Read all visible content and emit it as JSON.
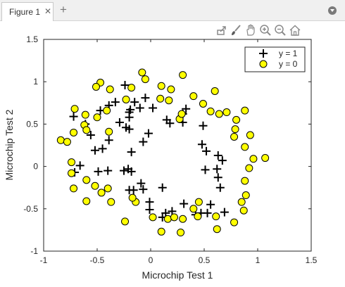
{
  "window": {
    "tab_label": "Figure 1",
    "tab_close": "✕",
    "add_tab": "+"
  },
  "toolbar": {
    "icons": [
      "export-icon",
      "brush-icon",
      "pan-icon",
      "zoom-in-icon",
      "zoom-out-icon",
      "home-icon"
    ]
  },
  "chart_data": {
    "type": "scatter",
    "title": "",
    "xlabel": "Microchip Test 1",
    "ylabel": "Microchip Test 2",
    "xlim": [
      -1,
      1.5
    ],
    "ylim": [
      -1,
      1.5
    ],
    "xticks": [
      "-1",
      "-0.5",
      "0",
      "0.5",
      "1",
      "1.5"
    ],
    "yticks": [
      "-1",
      "-0.5",
      "0",
      "0.5",
      "1",
      "1.5"
    ],
    "legend_position": "top-right",
    "grid": false,
    "series": [
      {
        "name": "y = 1",
        "marker": "plus",
        "color": "#000000",
        "points": [
          [
            -0.24,
            0.96
          ],
          [
            -0.05,
            0.81
          ],
          [
            0.02,
            0.69
          ],
          [
            -0.19,
            0.67
          ],
          [
            0.15,
            0.55
          ],
          [
            0.18,
            0.51
          ],
          [
            0.3,
            0.62
          ],
          [
            0.33,
            0.68
          ],
          [
            0.49,
            0.48
          ],
          [
            0.48,
            0.26
          ],
          [
            0.52,
            0.18
          ],
          [
            0.63,
            0.13
          ],
          [
            0.67,
            0.07
          ],
          [
            0.62,
            -0.03
          ],
          [
            0.63,
            -0.13
          ],
          [
            0.65,
            -0.25
          ],
          [
            0.69,
            -0.54
          ],
          [
            0.53,
            -0.55
          ],
          [
            0.42,
            -0.57
          ],
          [
            0.31,
            -0.44
          ],
          [
            0.14,
            -0.55
          ],
          [
            -0.01,
            -0.42
          ],
          [
            -0.07,
            -0.27
          ],
          [
            -0.16,
            -0.28
          ],
          [
            -0.2,
            -0.28
          ],
          [
            -0.09,
            -0.2
          ],
          [
            -0.18,
            -0.06
          ],
          [
            -0.25,
            -0.05
          ],
          [
            -0.4,
            -0.05
          ],
          [
            -0.49,
            -0.06
          ],
          [
            -0.52,
            0.19
          ],
          [
            -0.45,
            0.21
          ],
          [
            -0.39,
            0.31
          ],
          [
            -0.56,
            0.37
          ],
          [
            -0.66,
            0.01
          ],
          [
            -0.71,
            -0.07
          ],
          [
            -0.61,
            0.5
          ],
          [
            -0.72,
            0.59
          ],
          [
            -0.47,
            0.66
          ],
          [
            -0.39,
            0.72
          ],
          [
            -0.2,
            0.64
          ],
          [
            -0.15,
            0.76
          ],
          [
            -0.1,
            0.69
          ],
          [
            -0.2,
            0.58
          ],
          [
            -0.29,
            0.52
          ],
          [
            -0.33,
            0.76
          ],
          [
            -0.23,
            0.46
          ],
          [
            -0.18,
            0.17
          ],
          [
            -0.2,
            0.44
          ],
          [
            -0.02,
            0.39
          ],
          [
            -0.07,
            0.29
          ],
          [
            0.3,
            0.52
          ],
          [
            0.51,
            -0.04
          ],
          [
            0.56,
            -0.45
          ],
          [
            0.47,
            -0.55
          ],
          [
            -0.01,
            -0.51
          ],
          [
            -0.21,
            -0.03
          ],
          [
            0.2,
            -0.53
          ],
          [
            0.11,
            -0.25
          ],
          [
            0.11,
            -0.6
          ]
        ]
      },
      {
        "name": "y = 0",
        "marker": "circle",
        "color": "#ffff00",
        "points": [
          [
            -0.08,
            1.11
          ],
          [
            -0.47,
            0.99
          ],
          [
            -0.51,
            0.94
          ],
          [
            -0.38,
            0.91
          ],
          [
            -0.18,
            0.93
          ],
          [
            -0.05,
            1.03
          ],
          [
            0.1,
            0.95
          ],
          [
            0.19,
            0.91
          ],
          [
            0.3,
            1.08
          ],
          [
            0.4,
            0.83
          ],
          [
            0.49,
            0.74
          ],
          [
            0.6,
            0.89
          ],
          [
            0.56,
            0.65
          ],
          [
            0.64,
            0.62
          ],
          [
            0.71,
            0.64
          ],
          [
            0.88,
            0.66
          ],
          [
            0.8,
            0.55
          ],
          [
            0.79,
            0.44
          ],
          [
            0.93,
            0.37
          ],
          [
            0.88,
            0.23
          ],
          [
            0.96,
            0.09
          ],
          [
            1.07,
            0.1
          ],
          [
            0.92,
            -0.02
          ],
          [
            0.88,
            -0.17
          ],
          [
            0.85,
            -0.42
          ],
          [
            0.87,
            -0.52
          ],
          [
            0.78,
            -0.66
          ],
          [
            0.61,
            -0.59
          ],
          [
            0.44,
            -0.59
          ],
          [
            0.3,
            -0.62
          ],
          [
            0.16,
            -0.62
          ],
          [
            0.1,
            -0.77
          ],
          [
            0.28,
            -0.78
          ],
          [
            0.62,
            -0.74
          ],
          [
            0.45,
            -0.42
          ],
          [
            0.4,
            -0.5
          ],
          [
            0.22,
            -0.6
          ],
          [
            0.02,
            -0.6
          ],
          [
            -0.14,
            -0.42
          ],
          [
            -0.17,
            -0.37
          ],
          [
            -0.24,
            -0.65
          ],
          [
            -0.37,
            -0.42
          ],
          [
            -0.4,
            -0.26
          ],
          [
            -0.46,
            -0.31
          ],
          [
            -0.52,
            -0.23
          ],
          [
            -0.6,
            -0.16
          ],
          [
            -0.6,
            -0.41
          ],
          [
            -0.72,
            -0.26
          ],
          [
            -0.74,
            -0.08
          ],
          [
            -0.74,
            0.05
          ],
          [
            -0.84,
            0.31
          ],
          [
            -0.78,
            0.29
          ],
          [
            -0.72,
            0.4
          ],
          [
            -0.62,
            0.49
          ],
          [
            -0.61,
            0.61
          ],
          [
            -0.71,
            0.68
          ],
          [
            -0.41,
            0.66
          ],
          [
            -0.5,
            0.58
          ],
          [
            -0.39,
            0.41
          ],
          [
            0.27,
            0.56
          ],
          [
            0.29,
            0.62
          ],
          [
            0.78,
            0.35
          ],
          [
            0.89,
            -0.34
          ],
          [
            0.17,
            0.78
          ],
          [
            0.09,
            0.8
          ],
          [
            -0.23,
            0.79
          ],
          [
            -0.6,
            0.43
          ]
        ]
      }
    ]
  }
}
